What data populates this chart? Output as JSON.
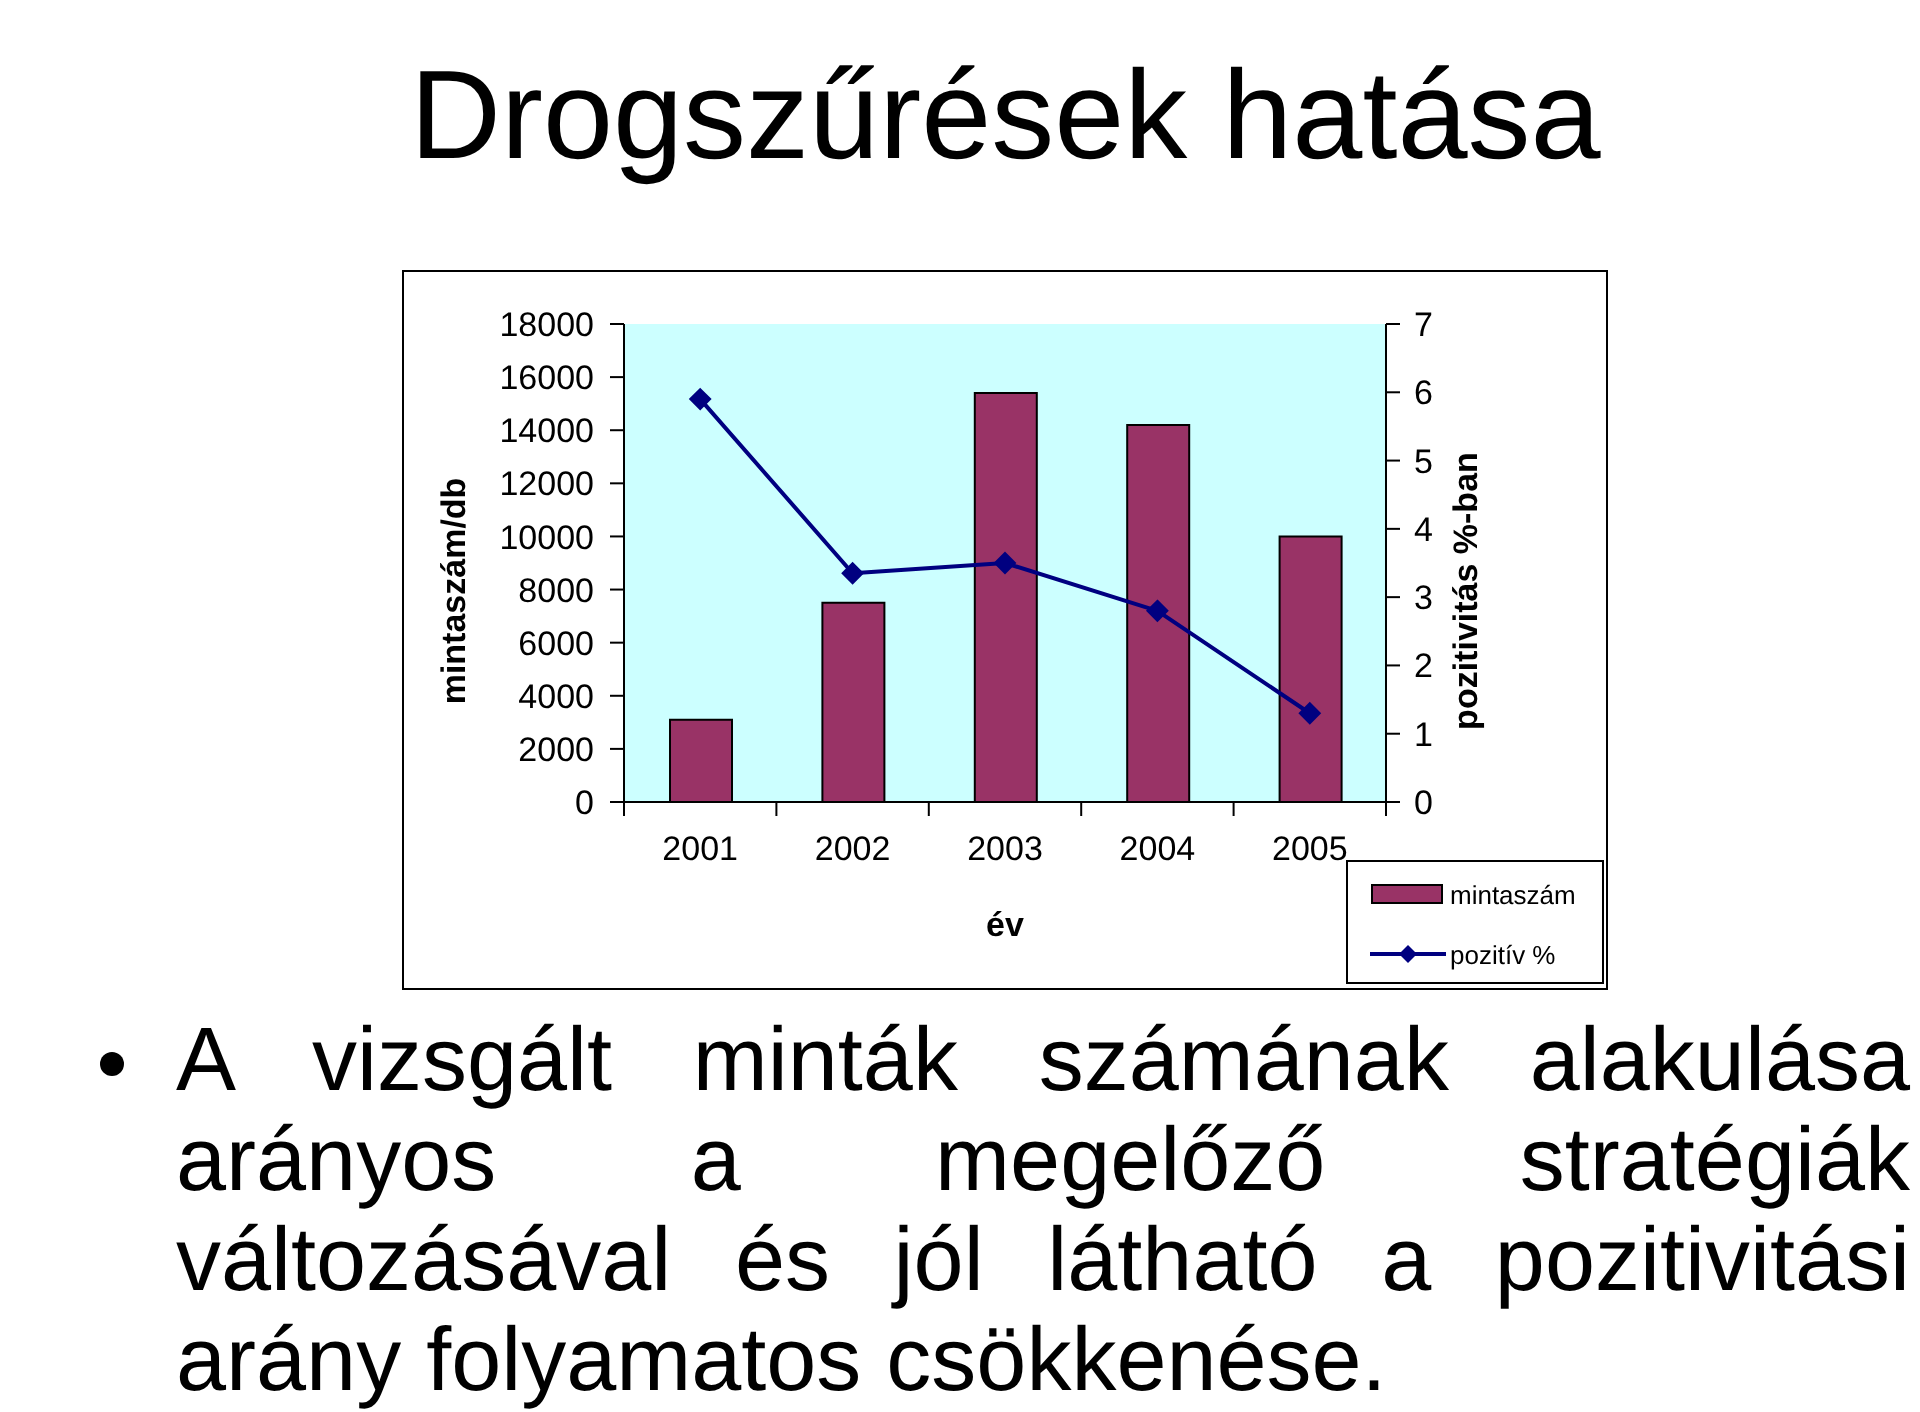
{
  "chart_data": {
    "type": "bar",
    "title": "Drogszűrések hatása",
    "xlabel": "év",
    "ylabel": "mintaszám/db",
    "y2label": "pozitivitás %-ban",
    "annotations": [
      "A vizsgált minták számának alakulása arányos a megelőző stratégiák változásával és jól látható a pozitivitási arány folyamatos csökkenése."
    ],
    "categories": [
      "2001",
      "2002",
      "2003",
      "2004",
      "2005"
    ],
    "series": [
      {
        "name": "mintaszám",
        "color": "#993366",
        "values": [
          3100,
          7500,
          15400,
          14200,
          10000
        ]
      },
      {
        "name": "pozitív %",
        "type": "line",
        "axis": "y2",
        "color": "#000080",
        "values": [
          5.9,
          3.35,
          3.5,
          2.8,
          1.3
        ]
      }
    ],
    "ylim": [
      0,
      18000
    ],
    "yticks": [
      0,
      2000,
      4000,
      6000,
      8000,
      10000,
      12000,
      14000,
      16000,
      18000
    ],
    "y2lim": [
      0,
      7
    ],
    "y2ticks": [
      0,
      1,
      2,
      3,
      4,
      5,
      6,
      7
    ],
    "legend": "bottom right",
    "marker": "diamond",
    "line_style": "solid"
  }
}
